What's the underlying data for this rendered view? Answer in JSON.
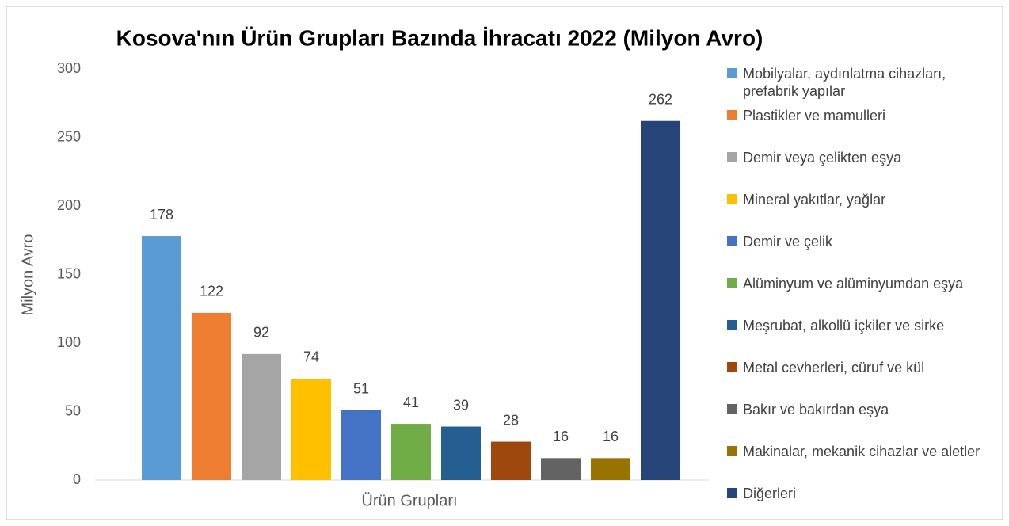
{
  "chart_data": {
    "type": "bar",
    "title": "Kosova'nın Ürün Grupları Bazında İhracatı 2022 (Milyon Avro)",
    "x_label": "Ürün Grupları",
    "y_label": "Milyon Avro",
    "categories": [
      "Ürün Grupları"
    ],
    "series": [
      {
        "name": "Mobilyalar, aydınlatma cihazları, prefabrik yapılar",
        "color": "#5b9bd5",
        "values": [
          178
        ]
      },
      {
        "name": "Plastikler ve mamulleri",
        "color": "#ed7d31",
        "values": [
          122
        ]
      },
      {
        "name": "Demir veya çelikten eşya",
        "color": "#a5a5a5",
        "values": [
          92
        ]
      },
      {
        "name": "Mineral yakıtlar, yağlar",
        "color": "#ffc000",
        "values": [
          74
        ]
      },
      {
        "name": "Demir ve çelik",
        "color": "#4472c4",
        "values": [
          51
        ]
      },
      {
        "name": "Alüminyum ve alüminyumdan eşya",
        "color": "#70ad47",
        "values": [
          41
        ]
      },
      {
        "name": "Meşrubat, alkollü içkiler ve sirke",
        "color": "#255e91",
        "values": [
          39
        ]
      },
      {
        "name": "Metal cevherleri, cüruf ve kül",
        "color": "#9e480e",
        "values": [
          28
        ]
      },
      {
        "name": "Bakır ve bakırdan eşya",
        "color": "#636363",
        "values": [
          16
        ]
      },
      {
        "name": "Makinalar, mekanik cihazlar ve aletler",
        "color": "#997300",
        "values": [
          16
        ]
      },
      {
        "name": "Diğerleri",
        "color": "#264478",
        "values": [
          262
        ]
      }
    ],
    "ylim": [
      0,
      300
    ],
    "yticks": [
      0,
      50,
      100,
      150,
      200,
      250,
      300
    ],
    "grid": false,
    "legend": "right"
  }
}
